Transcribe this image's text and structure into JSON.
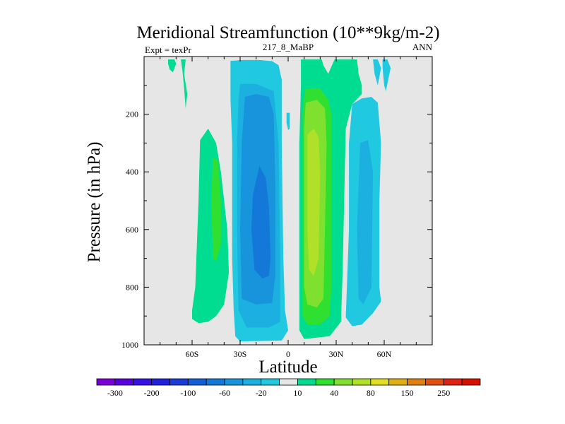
{
  "chart_data": {
    "type": "filled-contour",
    "title": "Meridional Streamfunction (10**9kg/m-2)",
    "left_string": "Expt = texPr",
    "center_string": "217_8_MaBP",
    "right_string": "ANN",
    "xlabel": "Latitude",
    "ylabel": "Pressure (in hPa)",
    "x_range": [
      -90,
      90
    ],
    "y_range": [
      0,
      1000
    ],
    "x_ticks": [
      {
        "value": -60,
        "label": "60S"
      },
      {
        "value": -30,
        "label": "30S"
      },
      {
        "value": 0,
        "label": "0"
      },
      {
        "value": 30,
        "label": "30N"
      },
      {
        "value": 60,
        "label": "60N"
      }
    ],
    "y_ticks": [
      {
        "value": 200,
        "label": "200"
      },
      {
        "value": 400,
        "label": "400"
      },
      {
        "value": 600,
        "label": "600"
      },
      {
        "value": 800,
        "label": "800"
      },
      {
        "value": 1000,
        "label": "1000"
      }
    ],
    "missing_color": "#e6e6e6",
    "colorbar": {
      "levels": [
        -300,
        -250,
        -200,
        -150,
        -100,
        -80,
        -60,
        -40,
        -20,
        -10,
        10,
        20,
        40,
        60,
        80,
        100,
        150,
        200,
        250,
        300
      ],
      "labels": [
        "-300",
        "-200",
        "-100",
        "-60",
        "-20",
        "10",
        "40",
        "80",
        "150",
        "250"
      ],
      "colors": [
        "#7b00d8",
        "#5a00e0",
        "#3a10e8",
        "#2020e0",
        "#1a3cd8",
        "#1260d8",
        "#1478d8",
        "#1894dc",
        "#1cb0e0",
        "#20c8e0",
        "#e6e6e6",
        "#00dc90",
        "#30e030",
        "#80e030",
        "#b0e028",
        "#e0e020",
        "#e0b010",
        "#e08010",
        "#e05010",
        "#e02010",
        "#d81000"
      ]
    },
    "regions": [
      {
        "label": "-10",
        "color": "#20c8e0",
        "points": [
          [
            -36,
            15
          ],
          [
            -28,
            12
          ],
          [
            -18,
            12
          ],
          [
            -10,
            16
          ],
          [
            -6,
            30
          ],
          [
            -4,
            80
          ],
          [
            -4,
            300
          ],
          [
            -3,
            700
          ],
          [
            -2,
            880
          ],
          [
            0,
            950
          ],
          [
            -4,
            985
          ],
          [
            -30,
            988
          ],
          [
            -33,
            970
          ],
          [
            -34,
            880
          ],
          [
            -35,
            700
          ],
          [
            -35,
            300
          ],
          [
            -36,
            150
          ]
        ]
      },
      {
        "label": "-20",
        "color": "#1cb0e0",
        "points": [
          [
            -30,
            95
          ],
          [
            -20,
            95
          ],
          [
            -9,
            120
          ],
          [
            -6,
            300
          ],
          [
            -5,
            700
          ],
          [
            -5,
            920
          ],
          [
            -12,
            940
          ],
          [
            -26,
            940
          ],
          [
            -31,
            880
          ],
          [
            -32,
            600
          ],
          [
            -32,
            300
          ],
          [
            -31,
            150
          ]
        ]
      },
      {
        "label": "-40",
        "color": "#1894dc",
        "points": [
          [
            -27,
            140
          ],
          [
            -20,
            130
          ],
          [
            -12,
            140
          ],
          [
            -9,
            200
          ],
          [
            -8,
            450
          ],
          [
            -8,
            760
          ],
          [
            -10,
            855
          ],
          [
            -20,
            860
          ],
          [
            -29,
            840
          ],
          [
            -30,
            600
          ],
          [
            -29,
            300
          ]
        ]
      },
      {
        "label": "-60",
        "color": "#1478d8",
        "points": [
          [
            -18,
            380
          ],
          [
            -14,
            420
          ],
          [
            -12,
            520
          ],
          [
            -11,
            700
          ],
          [
            -12,
            760
          ],
          [
            -16,
            770
          ],
          [
            -21,
            740
          ],
          [
            -23,
            600
          ],
          [
            -22,
            480
          ]
        ]
      },
      {
        "label": "-10",
        "color": "#20c8e0",
        "points": [
          [
            40,
            165
          ],
          [
            46,
            145
          ],
          [
            52,
            140
          ],
          [
            56,
            160
          ],
          [
            58,
            300
          ],
          [
            57,
            500
          ],
          [
            57,
            800
          ],
          [
            58,
            850
          ],
          [
            53,
            890
          ],
          [
            46,
            930
          ],
          [
            40,
            935
          ],
          [
            36,
            905
          ],
          [
            37,
            750
          ],
          [
            38,
            600
          ],
          [
            38,
            300
          ]
        ]
      },
      {
        "label": "-20",
        "color": "#1cb0e0",
        "points": [
          [
            45,
            300
          ],
          [
            50,
            290
          ],
          [
            53,
            400
          ],
          [
            52,
            800
          ],
          [
            47,
            860
          ],
          [
            44,
            840
          ],
          [
            43,
            600
          ]
        ]
      },
      {
        "label": "-10",
        "color": "#20c8e0",
        "points": [
          [
            59,
            10
          ],
          [
            62,
            10
          ],
          [
            64,
            40
          ],
          [
            61,
            120
          ],
          [
            60,
            100
          ],
          [
            59,
            40
          ]
        ]
      },
      {
        "label": "-10",
        "color": "#20c8e0",
        "points": [
          [
            53,
            10
          ],
          [
            56,
            10
          ],
          [
            58,
            40
          ],
          [
            56,
            100
          ],
          [
            54,
            60
          ]
        ]
      },
      {
        "label": "10",
        "color": "#00dc90",
        "points": [
          [
            8,
            10
          ],
          [
            21,
            10
          ],
          [
            22,
            30
          ],
          [
            25,
            60
          ],
          [
            29,
            10
          ],
          [
            43,
            10
          ],
          [
            44,
            60
          ],
          [
            46,
            100
          ],
          [
            46,
            130
          ],
          [
            40,
            165
          ],
          [
            36,
            250
          ],
          [
            35,
            500
          ],
          [
            34,
            750
          ],
          [
            33,
            920
          ],
          [
            26,
            970
          ],
          [
            10,
            980
          ],
          [
            7,
            950
          ],
          [
            7,
            700
          ],
          [
            7,
            300
          ],
          [
            8,
            100
          ]
        ]
      },
      {
        "label": "20",
        "color": "#30e030",
        "points": [
          [
            11,
            110
          ],
          [
            20,
            110
          ],
          [
            25,
            150
          ],
          [
            27,
            200
          ],
          [
            27,
            500
          ],
          [
            27,
            800
          ],
          [
            26,
            900
          ],
          [
            20,
            930
          ],
          [
            12,
            930
          ],
          [
            9,
            900
          ],
          [
            9,
            500
          ],
          [
            9,
            200
          ],
          [
            10,
            140
          ]
        ]
      },
      {
        "label": "40",
        "color": "#80e030",
        "points": [
          [
            11,
            160
          ],
          [
            18,
            150
          ],
          [
            23,
            180
          ],
          [
            24,
            300
          ],
          [
            23,
            600
          ],
          [
            22,
            840
          ],
          [
            18,
            870
          ],
          [
            12,
            860
          ],
          [
            10,
            800
          ],
          [
            10,
            400
          ],
          [
            10,
            250
          ]
        ]
      },
      {
        "label": "60",
        "color": "#b0e028",
        "points": [
          [
            12,
            270
          ],
          [
            16,
            250
          ],
          [
            19,
            280
          ],
          [
            20,
            400
          ],
          [
            19,
            700
          ],
          [
            16,
            760
          ],
          [
            13,
            740
          ],
          [
            12,
            600
          ],
          [
            12,
            400
          ]
        ]
      },
      {
        "label": "10",
        "color": "#00dc90",
        "points": [
          [
            -55,
            290
          ],
          [
            -50,
            250
          ],
          [
            -45,
            300
          ],
          [
            -42,
            400
          ],
          [
            -38,
            600
          ],
          [
            -37,
            750
          ],
          [
            -40,
            860
          ],
          [
            -45,
            900
          ],
          [
            -50,
            920
          ],
          [
            -56,
            925
          ],
          [
            -60,
            910
          ],
          [
            -60,
            880
          ],
          [
            -58,
            800
          ],
          [
            -56,
            500
          ]
        ]
      },
      {
        "label": "20",
        "color": "#30e030",
        "points": [
          [
            -47,
            350
          ],
          [
            -44,
            360
          ],
          [
            -42,
            500
          ],
          [
            -42,
            650
          ],
          [
            -45,
            710
          ],
          [
            -47,
            700
          ],
          [
            -48,
            500
          ]
        ]
      },
      {
        "label": "10",
        "color": "#00dc90",
        "points": [
          [
            -75,
            10
          ],
          [
            -71,
            10
          ],
          [
            -70,
            25
          ],
          [
            -72,
            55
          ],
          [
            -74,
            45
          ],
          [
            -75,
            25
          ]
        ]
      },
      {
        "label": "10",
        "color": "#00dc90",
        "points": [
          [
            -67,
            10
          ],
          [
            -64,
            10
          ],
          [
            -65,
            60
          ],
          [
            -63,
            130
          ],
          [
            -64,
            180
          ],
          [
            -65,
            110
          ],
          [
            -66,
            50
          ]
        ]
      },
      {
        "label": "-10",
        "color": "#20c8e0",
        "points": [
          [
            -1,
            195
          ],
          [
            1,
            195
          ],
          [
            1,
            250
          ],
          [
            0,
            255
          ],
          [
            -1,
            230
          ]
        ]
      }
    ]
  }
}
